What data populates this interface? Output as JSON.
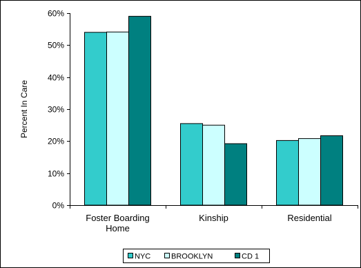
{
  "chart_data": {
    "type": "bar",
    "title": "",
    "xlabel": "",
    "ylabel": "Percent In Care",
    "categories": [
      "Foster Boarding Home",
      "Kinship",
      "Residential"
    ],
    "category_lines": [
      [
        "Foster Boarding",
        "Home"
      ],
      [
        "Kinship"
      ],
      [
        "Residential"
      ]
    ],
    "yticks": [
      "0%",
      "10%",
      "20%",
      "30%",
      "40%",
      "50%",
      "60%"
    ],
    "ylim": [
      0,
      60
    ],
    "grid": false,
    "legend_position": "bottom",
    "series": [
      {
        "name": "NYC",
        "values": [
          54,
          25.5,
          20.2
        ],
        "color": "#33CCCC"
      },
      {
        "name": "BROOKLYN",
        "values": [
          54.1,
          25,
          20.8
        ],
        "color": "#CCFFFF"
      },
      {
        "name": "CD 1",
        "values": [
          59,
          19.2,
          21.7
        ],
        "color": "#008080"
      }
    ]
  }
}
